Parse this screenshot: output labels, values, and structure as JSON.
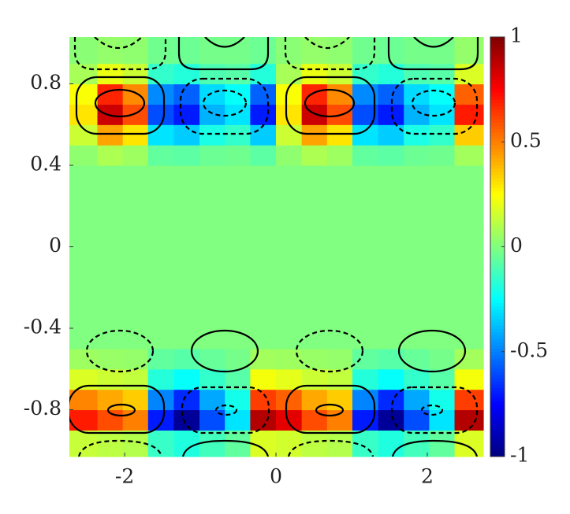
{
  "chart_data": {
    "type": "heatmap",
    "colormap": "jet",
    "x": [
      -2.53,
      -2.19,
      -1.86,
      -1.52,
      -1.18,
      -0.84,
      -0.51,
      -0.17,
      0.17,
      0.51,
      0.84,
      1.18,
      1.52,
      1.86,
      2.19,
      2.53
    ],
    "y": [
      -0.95,
      -0.85,
      -0.75,
      -0.65,
      -0.55,
      -0.45,
      -0.35,
      -0.25,
      -0.15,
      -0.05,
      0.05,
      0.15,
      0.25,
      0.35,
      0.45,
      0.55,
      0.65,
      0.75,
      0.85,
      0.95
    ],
    "values": [
      [
        0.14,
        0.12,
        0.1,
        -0.14,
        -0.19,
        -0.12,
        -0.06,
        0.18,
        0.16,
        0.12,
        0.1,
        -0.14,
        -0.19,
        -0.12,
        -0.06,
        0.18
      ],
      [
        0.7,
        0.6,
        0.5,
        -0.7,
        -0.95,
        -0.6,
        -0.3,
        0.9,
        0.8,
        0.6,
        0.5,
        -0.7,
        -0.95,
        -0.6,
        -0.3,
        0.9
      ],
      [
        0.49,
        0.42,
        0.35,
        -0.49,
        -0.67,
        -0.42,
        -0.21,
        0.63,
        0.56,
        0.42,
        0.35,
        -0.49,
        -0.67,
        -0.42,
        -0.21,
        0.63
      ],
      [
        0.18,
        0.15,
        0.13,
        -0.18,
        -0.24,
        -0.15,
        -0.08,
        0.23,
        0.2,
        0.15,
        0.13,
        -0.18,
        -0.24,
        -0.15,
        -0.08,
        0.23
      ],
      [
        0.06,
        0.05,
        0.04,
        -0.06,
        -0.08,
        -0.05,
        -0.02,
        0.07,
        0.06,
        0.05,
        0.04,
        -0.06,
        -0.08,
        -0.05,
        -0.02,
        0.07
      ],
      [
        0,
        0,
        0,
        0,
        0,
        0,
        0,
        0,
        0,
        0,
        0,
        0,
        0,
        0,
        0,
        0
      ],
      [
        0,
        0,
        0,
        0,
        0,
        0,
        0,
        0,
        0,
        0,
        0,
        0,
        0,
        0,
        0,
        0
      ],
      [
        0,
        0,
        0,
        0,
        0,
        0,
        0,
        0,
        0,
        0,
        0,
        0,
        0,
        0,
        0,
        0
      ],
      [
        0,
        0,
        0,
        0,
        0,
        0,
        0,
        0,
        0,
        0,
        0,
        0,
        0,
        0,
        0,
        0
      ],
      [
        0,
        0,
        0,
        0,
        0,
        0,
        0,
        0,
        0,
        0,
        0,
        0,
        0,
        0,
        0,
        0
      ],
      [
        0,
        0,
        0,
        0,
        0,
        0,
        0,
        0,
        0,
        0,
        0,
        0,
        0,
        0,
        0,
        0
      ],
      [
        0,
        0,
        0,
        0,
        0,
        0,
        0,
        0,
        0,
        0,
        0,
        0,
        0,
        0,
        0,
        0
      ],
      [
        0,
        0,
        0,
        0,
        0,
        0,
        0,
        0,
        0,
        0,
        0,
        0,
        0,
        0,
        0,
        0
      ],
      [
        0,
        0,
        0,
        0,
        0,
        0,
        0,
        0,
        0,
        0,
        0,
        0,
        0,
        0,
        0,
        0
      ],
      [
        0.03,
        0.09,
        0.06,
        -0.06,
        -0.07,
        -0.04,
        -0.03,
        -0.07,
        0.03,
        0.09,
        0.06,
        -0.06,
        -0.07,
        -0.04,
        -0.03,
        0.07
      ],
      [
        0.15,
        0.43,
        0.3,
        -0.3,
        -0.35,
        -0.2,
        -0.15,
        -0.35,
        0.15,
        0.43,
        0.3,
        -0.3,
        -0.35,
        -0.2,
        -0.15,
        0.35
      ],
      [
        0.3,
        0.85,
        0.6,
        -0.6,
        -0.7,
        -0.4,
        -0.3,
        -0.7,
        0.3,
        0.85,
        0.6,
        -0.6,
        -0.7,
        -0.4,
        -0.3,
        0.7
      ],
      [
        0.24,
        0.68,
        0.48,
        -0.48,
        -0.56,
        -0.32,
        -0.24,
        -0.56,
        0.24,
        0.68,
        0.48,
        -0.48,
        -0.56,
        -0.32,
        -0.24,
        0.56
      ],
      [
        0.08,
        0.21,
        0.15,
        -0.15,
        -0.18,
        -0.1,
        -0.08,
        -0.18,
        0.08,
        0.21,
        0.15,
        -0.15,
        -0.18,
        -0.1,
        -0.08,
        0.18
      ],
      [
        0.02,
        0.04,
        0.03,
        -0.03,
        -0.04,
        -0.02,
        -0.02,
        -0.04,
        0.02,
        0.04,
        0.03,
        -0.03,
        -0.04,
        -0.02,
        -0.02,
        0.04
      ]
    ],
    "xlim": [
      -2.73,
      2.74
    ],
    "xticks": [
      -2,
      0,
      2
    ],
    "ylim": [
      -1.03,
      1.03
    ],
    "yticks": [
      -0.8,
      -0.4,
      0,
      0.4,
      0.8
    ],
    "clim": [
      -1,
      1
    ],
    "cticks": [
      -1,
      -0.5,
      0,
      0.5,
      1
    ]
  }
}
